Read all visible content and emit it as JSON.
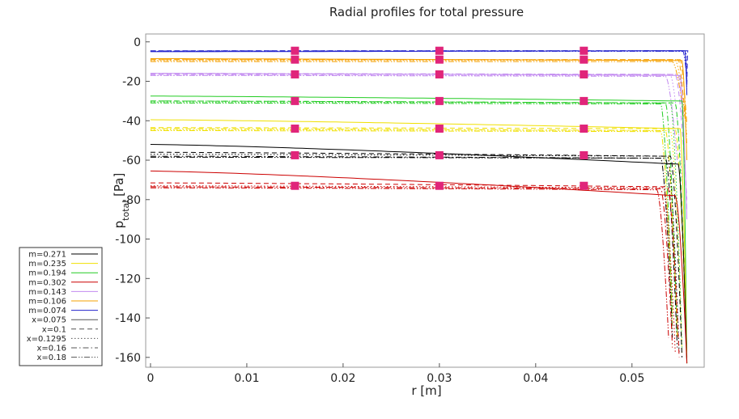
{
  "chart_data": {
    "type": "line",
    "title": "Radial profiles for total pressure",
    "xlabel": "r [m]",
    "ylabel_main": "p",
    "ylabel_sub": "total",
    "ylabel_unit": " [Pa]",
    "xlim": [
      -0.0005,
      0.0575
    ],
    "ylim": [
      -165,
      4
    ],
    "xticks": [
      0,
      0.01,
      0.02,
      0.03,
      0.04,
      0.05
    ],
    "xtick_labels": [
      "0",
      "0.01",
      "0.02",
      "0.03",
      "0.04",
      "0.05"
    ],
    "yticks": [
      0,
      -20,
      -40,
      -60,
      -80,
      -100,
      -120,
      -140,
      -160
    ],
    "ytick_labels": [
      "0",
      "-20",
      "-40",
      "-60",
      "-80",
      "-100",
      "-120",
      "-140",
      "-160"
    ],
    "grid": false,
    "legend_position": "outside-left",
    "legend": [
      {
        "label": "m=0.271",
        "color": "#000000",
        "dash": "solid"
      },
      {
        "label": "m=0.235",
        "color": "#f0e000",
        "dash": "solid"
      },
      {
        "label": "m=0.194",
        "color": "#22cc22",
        "dash": "solid"
      },
      {
        "label": "m=0.302",
        "color": "#cc0000",
        "dash": "solid"
      },
      {
        "label": "m=0.143",
        "color": "#c28af0",
        "dash": "solid"
      },
      {
        "label": "m=0.106",
        "color": "#f5a000",
        "dash": "solid"
      },
      {
        "label": "m=0.074",
        "color": "#2222cc",
        "dash": "solid"
      },
      {
        "label": "x=0.075",
        "color": "#555555",
        "dash": "solid"
      },
      {
        "label": "x=0.1",
        "color": "#555555",
        "dash": "dashed"
      },
      {
        "label": "x=0.1295",
        "color": "#555555",
        "dash": "dotted"
      },
      {
        "label": "x=0.16",
        "color": "#555555",
        "dash": "dashdot"
      },
      {
        "label": "x=0.18",
        "color": "#555555",
        "dash": "dashdotdot"
      }
    ],
    "groups": [
      {
        "color": "#2222cc",
        "center": -4.5,
        "marker": -4.5,
        "series": [
          {
            "dash": "solid",
            "y0": -5,
            "yd": -4.5,
            "drop_r": 0.0555,
            "y_end": -27
          },
          {
            "dash": "dashed",
            "y0": -4.5,
            "yd": -4.5,
            "drop_r": 0.0558,
            "y_end": -22
          },
          {
            "dash": "dotted",
            "y0": -4.8,
            "yd": -4.7,
            "drop_r": 0.0556,
            "y_end": -24
          },
          {
            "dash": "dashdot",
            "y0": -4.6,
            "yd": -4.5,
            "drop_r": 0.0555,
            "y_end": -20
          },
          {
            "dash": "dashdotdot",
            "y0": -4.7,
            "yd": -4.8,
            "drop_r": 0.0553,
            "y_end": -19
          }
        ]
      },
      {
        "color": "#f5a000",
        "center": -9,
        "marker": -9,
        "series": [
          {
            "dash": "solid",
            "y0": -8.5,
            "yd": -9.5,
            "drop_r": 0.0552,
            "y_end": -60
          },
          {
            "dash": "dashed",
            "y0": -9,
            "yd": -9,
            "drop_r": 0.0548,
            "y_end": -52
          },
          {
            "dash": "dotted",
            "y0": -9.5,
            "yd": -9.3,
            "drop_r": 0.0545,
            "y_end": -48
          },
          {
            "dash": "dashdot",
            "y0": -9,
            "yd": -9,
            "drop_r": 0.055,
            "y_end": -42
          },
          {
            "dash": "dashdotdot",
            "y0": -10,
            "yd": -10,
            "drop_r": 0.0542,
            "y_end": -38
          }
        ]
      },
      {
        "color": "#c28af0",
        "center": -16.5,
        "marker": -16.5,
        "series": [
          {
            "dash": "solid",
            "y0": -16,
            "yd": -17,
            "drop_r": 0.055,
            "y_end": -90
          },
          {
            "dash": "dashed",
            "y0": -16.5,
            "yd": -16.5,
            "drop_r": 0.0545,
            "y_end": -80
          },
          {
            "dash": "dotted",
            "y0": -17,
            "yd": -17,
            "drop_r": 0.054,
            "y_end": -70
          },
          {
            "dash": "dashdot",
            "y0": -16,
            "yd": -16.5,
            "drop_r": 0.0548,
            "y_end": -85
          },
          {
            "dash": "dashdotdot",
            "y0": -17,
            "yd": -17.5,
            "drop_r": 0.0535,
            "y_end": -60
          }
        ]
      },
      {
        "color": "#22cc22",
        "center": -30,
        "marker": -30,
        "series": [
          {
            "dash": "solid",
            "y0": -27.5,
            "yd": -30,
            "drop_r": 0.0552,
            "y_end": -163
          },
          {
            "dash": "dashed",
            "y0": -30,
            "yd": -31,
            "drop_r": 0.0545,
            "y_end": -160
          },
          {
            "dash": "dotted",
            "y0": -30.5,
            "yd": -31,
            "drop_r": 0.054,
            "y_end": -155
          },
          {
            "dash": "dashdot",
            "y0": -30,
            "yd": -31,
            "drop_r": 0.0535,
            "y_end": -150
          },
          {
            "dash": "dashdotdot",
            "y0": -31,
            "yd": -31.5,
            "drop_r": 0.053,
            "y_end": -140
          }
        ]
      },
      {
        "color": "#f0e000",
        "center": -44,
        "marker": -44,
        "series": [
          {
            "dash": "solid",
            "y0": -39.5,
            "yd": -44,
            "drop_r": 0.055,
            "y_end": -163
          },
          {
            "dash": "dashed",
            "y0": -43.5,
            "yd": -44,
            "drop_r": 0.0545,
            "y_end": -162
          },
          {
            "dash": "dotted",
            "y0": -44.5,
            "yd": -45,
            "drop_r": 0.054,
            "y_end": -158
          },
          {
            "dash": "dashdot",
            "y0": -44,
            "yd": -45,
            "drop_r": 0.0535,
            "y_end": -150
          },
          {
            "dash": "dashdotdot",
            "y0": -45,
            "yd": -45.5,
            "drop_r": 0.053,
            "y_end": -145
          }
        ]
      },
      {
        "color": "#000000",
        "center": -57.5,
        "marker": -57.5,
        "series": [
          {
            "dash": "solid",
            "y0": -52,
            "yd": -62,
            "drop_r": 0.0548,
            "y_end": -163
          },
          {
            "dash": "dashed",
            "y0": -56,
            "yd": -58,
            "drop_r": 0.054,
            "y_end": -160
          },
          {
            "dash": "dotted",
            "y0": -57,
            "yd": -58,
            "drop_r": 0.0537,
            "y_end": -158
          },
          {
            "dash": "dashdot",
            "y0": -58,
            "yd": -59,
            "drop_r": 0.0535,
            "y_end": -155
          },
          {
            "dash": "dashdotdot",
            "y0": -58.5,
            "yd": -59,
            "drop_r": 0.053,
            "y_end": -150
          }
        ]
      },
      {
        "color": "#cc0000",
        "center": -73,
        "marker": -73,
        "series": [
          {
            "dash": "solid",
            "y0": -65.5,
            "yd": -78,
            "drop_r": 0.0545,
            "y_end": -163
          },
          {
            "dash": "dashed",
            "y0": -71.5,
            "yd": -73.5,
            "drop_r": 0.0537,
            "y_end": -160
          },
          {
            "dash": "dotted",
            "y0": -73,
            "yd": -74,
            "drop_r": 0.0533,
            "y_end": -158
          },
          {
            "dash": "dashdot",
            "y0": -73.5,
            "yd": -74.5,
            "drop_r": 0.053,
            "y_end": -155
          },
          {
            "dash": "dashdotdot",
            "y0": -74,
            "yd": -75,
            "drop_r": 0.0526,
            "y_end": -150
          }
        ]
      }
    ],
    "marker_x": [
      0.015,
      0.03,
      0.045
    ],
    "marker_color": "#e0257a"
  }
}
